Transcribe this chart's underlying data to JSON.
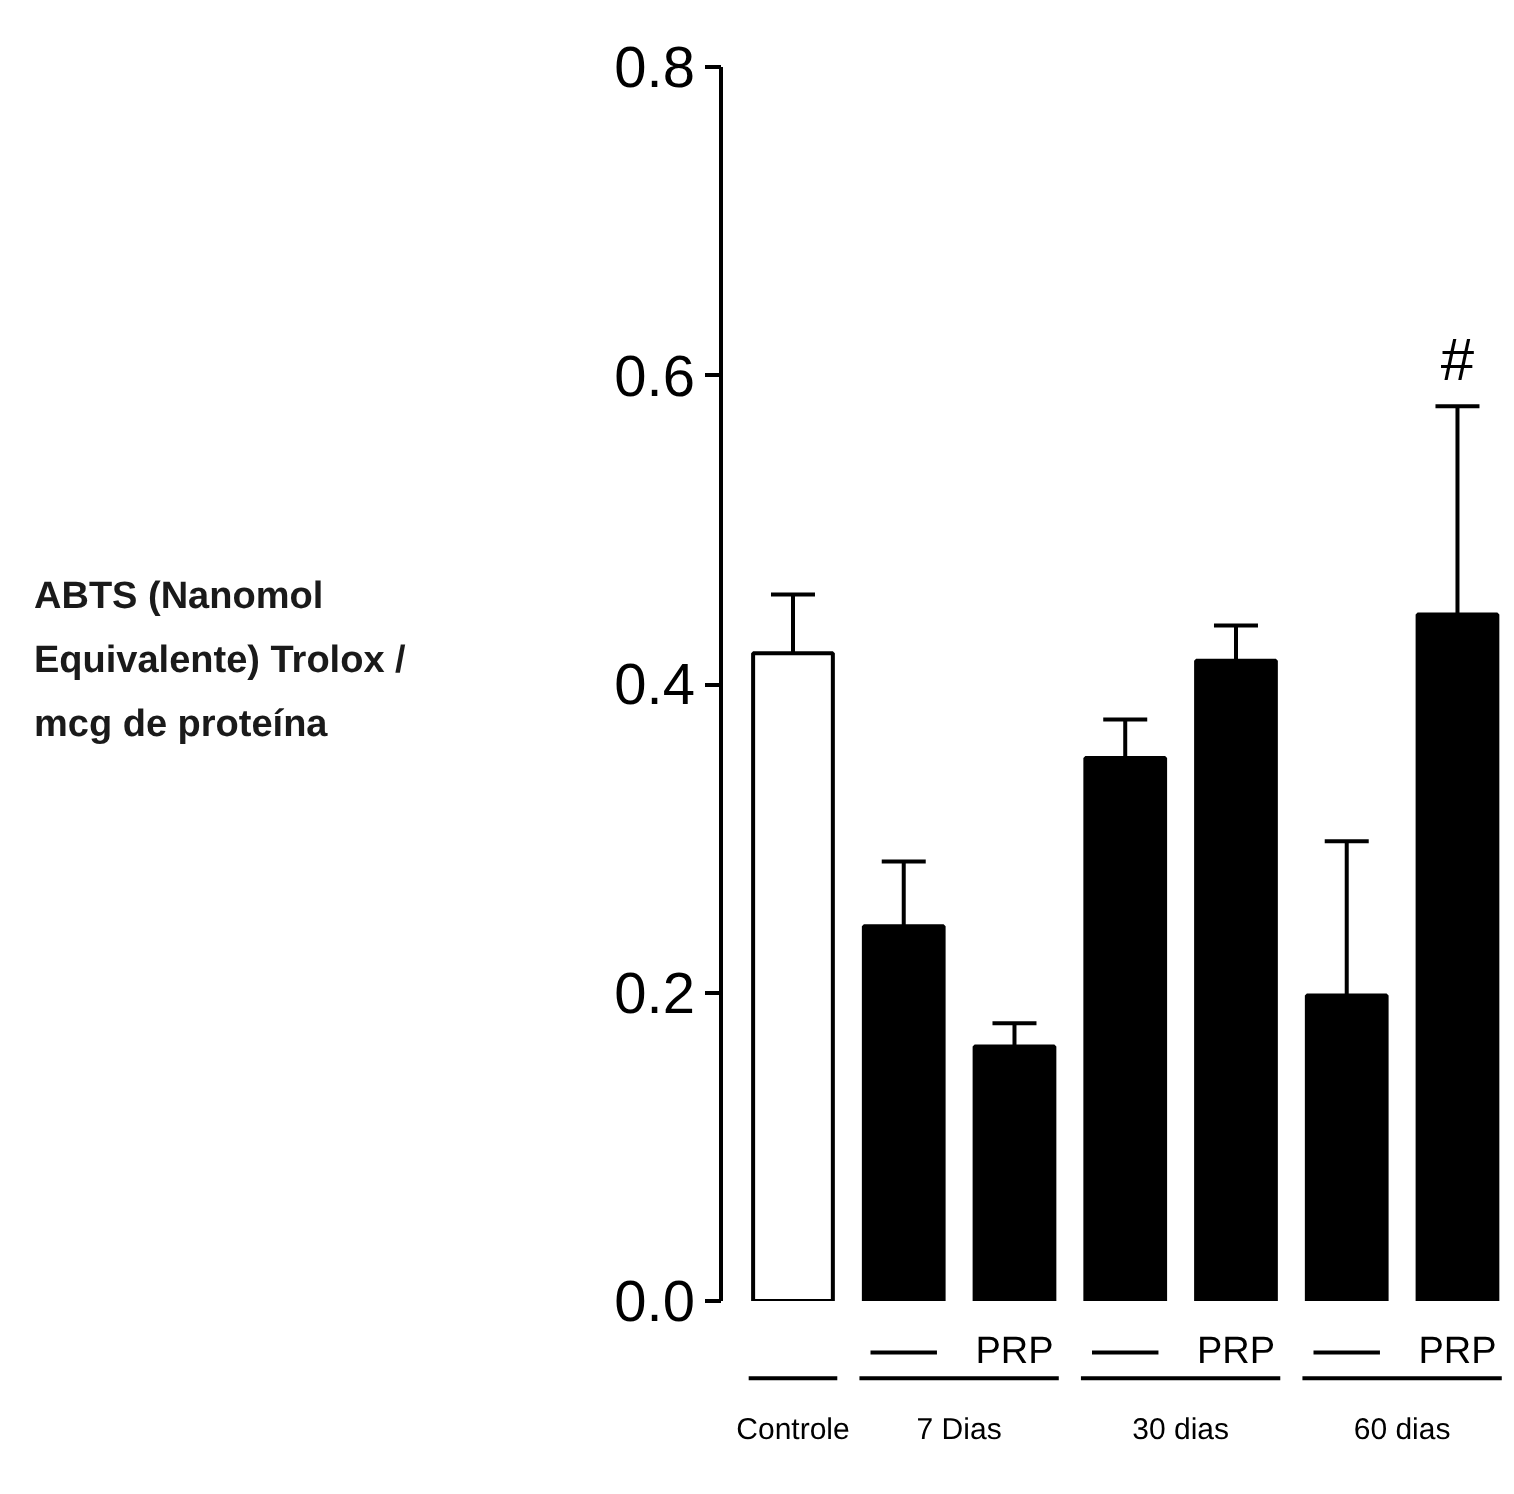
{
  "chart_data": {
    "type": "bar",
    "categories": [
      null,
      null,
      "PRP",
      null,
      "PRP",
      null,
      "PRP"
    ],
    "values": [
      0.42,
      0.243,
      0.165,
      0.352,
      0.415,
      0.198,
      0.445
    ],
    "colors": [
      "#ffffff",
      "#000000",
      "#000000",
      "#000000",
      "#000000",
      "#000000",
      "#000000"
    ],
    "errors": [
      [
        0.42,
        0.458
      ],
      [
        0.243,
        0.285
      ],
      [
        0.165,
        0.18
      ],
      [
        0.352,
        0.377
      ],
      [
        0.415,
        0.438
      ],
      [
        0.198,
        0.298
      ],
      [
        0.445,
        0.58
      ]
    ],
    "ylim": [
      0,
      0.8
    ],
    "yticks": [
      {
        "value": 0,
        "label": "0.0"
      },
      {
        "value": 0.2,
        "label": "0.2"
      },
      {
        "value": 0.4,
        "label": "0.4"
      },
      {
        "value": 0.6,
        "label": "0.6"
      },
      {
        "value": 0.8,
        "label": "0.8"
      }
    ],
    "annotations": [
      "Controle",
      "7 Dias",
      "30 dias",
      "60 dias",
      "#",
      "ABTS (Nanomol Equivalente) Trolox / mcg de proteína"
    ]
  }
}
